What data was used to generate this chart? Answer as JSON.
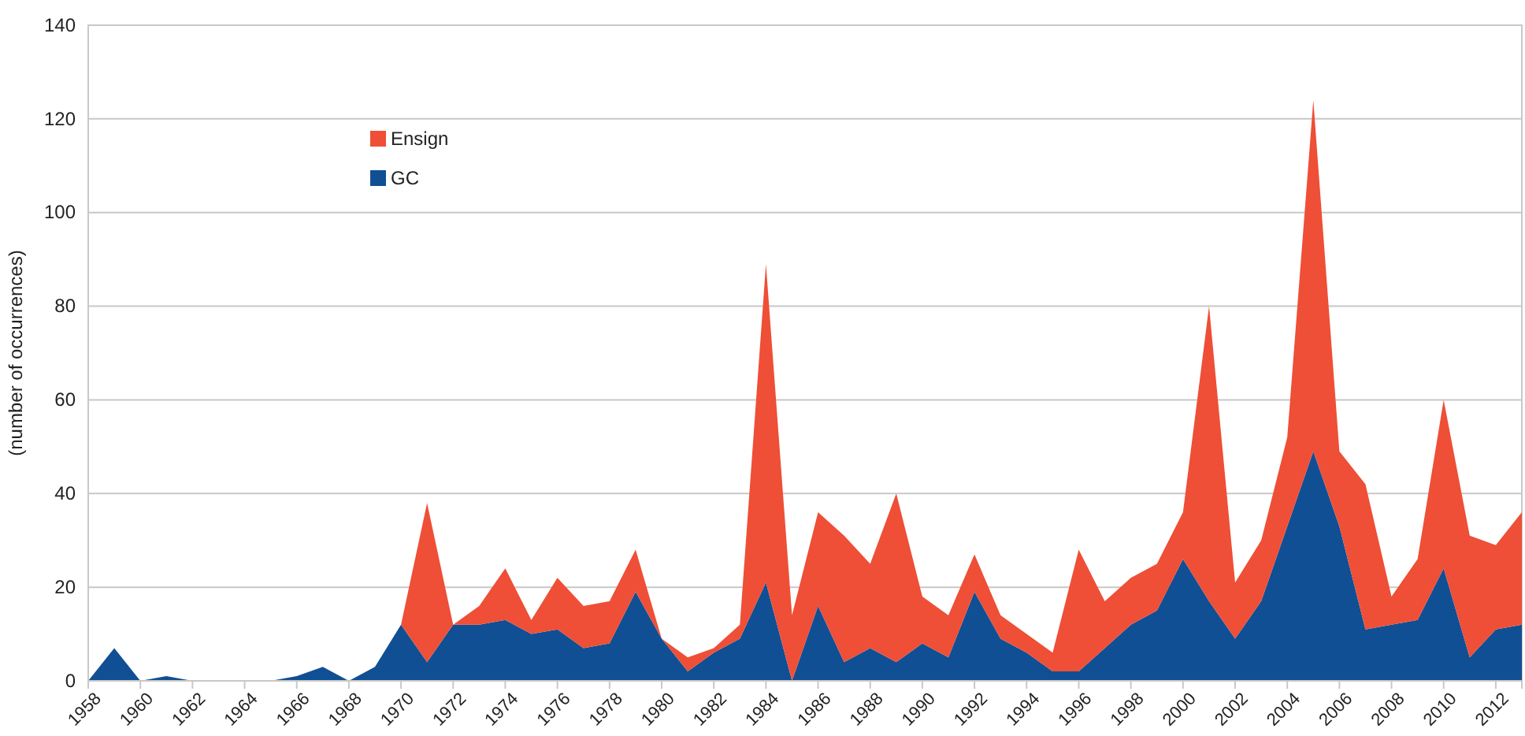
{
  "chart_data": {
    "type": "area",
    "stacked": true,
    "ylabel": "(number of occurrences)",
    "x": [
      1958,
      1959,
      1960,
      1961,
      1962,
      1963,
      1964,
      1965,
      1966,
      1967,
      1968,
      1969,
      1970,
      1971,
      1972,
      1973,
      1974,
      1975,
      1976,
      1977,
      1978,
      1979,
      1980,
      1981,
      1982,
      1983,
      1984,
      1985,
      1986,
      1987,
      1988,
      1989,
      1990,
      1991,
      1992,
      1993,
      1994,
      1995,
      1996,
      1997,
      1998,
      1999,
      2000,
      2001,
      2002,
      2003,
      2004,
      2005,
      2006,
      2007,
      2008,
      2009,
      2010,
      2011,
      2012,
      2013
    ],
    "series": [
      {
        "name": "GC",
        "color": "#104f94",
        "values": [
          0,
          7,
          0,
          1,
          0,
          0,
          0,
          0,
          1,
          3,
          0,
          3,
          12,
          4,
          12,
          12,
          13,
          10,
          11,
          7,
          8,
          19,
          9,
          2,
          6,
          9,
          21,
          0,
          16,
          4,
          7,
          4,
          8,
          5,
          19,
          9,
          6,
          2,
          2,
          7,
          12,
          15,
          26,
          17,
          9,
          17,
          33,
          49,
          33,
          11,
          12,
          13,
          24,
          5,
          11,
          12
        ]
      },
      {
        "name": "Ensign",
        "color": "#ee4f36",
        "values": [
          0,
          0,
          0,
          0,
          0,
          0,
          0,
          0,
          0,
          0,
          0,
          0,
          0,
          34,
          0,
          4,
          11,
          3,
          11,
          9,
          9,
          9,
          0,
          3,
          1,
          3,
          68,
          14,
          20,
          27,
          18,
          36,
          10,
          9,
          8,
          5,
          4,
          4,
          26,
          10,
          10,
          10,
          10,
          63,
          12,
          13,
          19,
          75,
          16,
          31,
          6,
          13,
          36,
          26,
          18,
          24
        ]
      }
    ],
    "xlim": [
      1958,
      2013
    ],
    "xticks": [
      1958,
      1960,
      1962,
      1964,
      1966,
      1968,
      1970,
      1972,
      1974,
      1976,
      1978,
      1980,
      1982,
      1984,
      1986,
      1988,
      1990,
      1992,
      1994,
      1996,
      1998,
      2000,
      2002,
      2004,
      2006,
      2008,
      2010,
      2012
    ],
    "ylim": [
      0,
      140
    ],
    "yticks": [
      0,
      20,
      40,
      60,
      80,
      100,
      120,
      140
    ],
    "grid": "y",
    "legend": "top left"
  }
}
